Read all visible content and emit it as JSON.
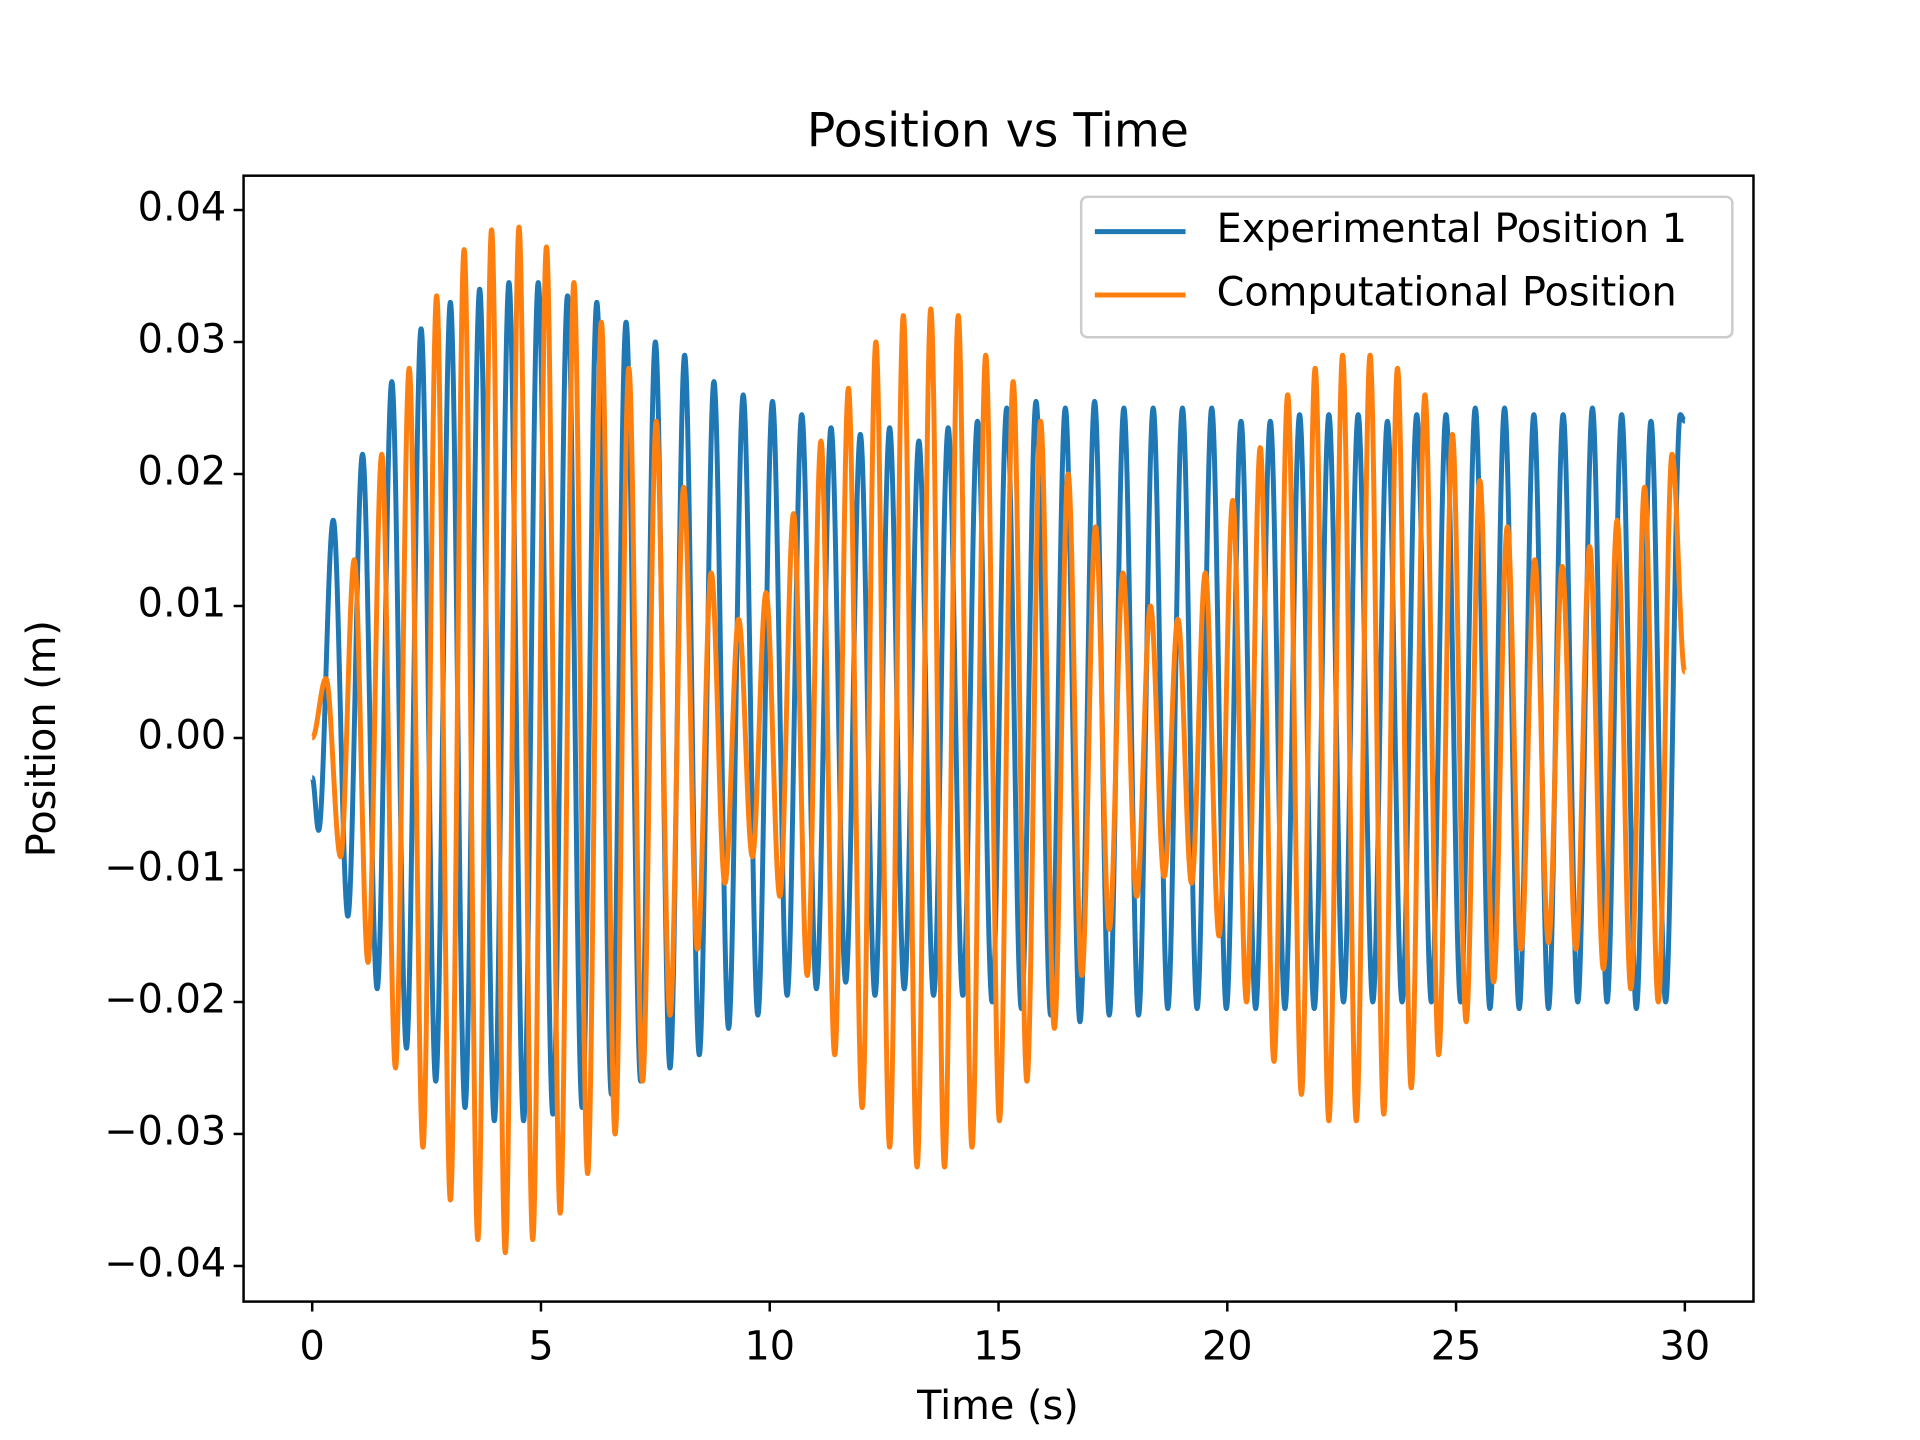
{
  "chart_data": {
    "type": "line",
    "title": "Position vs Time",
    "x_label": "Time (s)",
    "y_label": "Position (m)",
    "xlim": [
      -1.5,
      31.5
    ],
    "ylim": [
      -0.0427,
      0.0426
    ],
    "xticks": [
      0,
      5,
      10,
      15,
      20,
      25,
      30
    ],
    "yticks": [
      {
        "value": -0.04,
        "label": "−0.04"
      },
      {
        "value": -0.03,
        "label": "−0.03"
      },
      {
        "value": -0.02,
        "label": "−0.02"
      },
      {
        "value": -0.01,
        "label": "−0.01"
      },
      {
        "value": 0,
        "label": "0.00"
      },
      {
        "value": 0.01,
        "label": "0.01"
      },
      {
        "value": 0.02,
        "label": "0.02"
      },
      {
        "value": 0.03,
        "label": "0.03"
      },
      {
        "value": 0.04,
        "label": "0.04"
      }
    ],
    "grid": false,
    "legend": "upper right",
    "series": [
      {
        "name": "Experimental Position 1",
        "color": "#1f77b4",
        "x": [
          0,
          0.14,
          0.46,
          0.78,
          1.1,
          1.42,
          1.74,
          2.06,
          2.38,
          2.7,
          3.02,
          3.34,
          3.66,
          3.98,
          4.3,
          4.62,
          4.94,
          5.26,
          5.58,
          5.9,
          6.22,
          6.54,
          6.86,
          7.18,
          7.5,
          7.82,
          8.14,
          8.46,
          8.78,
          9.1,
          9.42,
          9.74,
          10.06,
          10.38,
          10.7,
          11.02,
          11.34,
          11.66,
          11.98,
          12.3,
          12.62,
          12.94,
          13.26,
          13.58,
          13.9,
          14.22,
          14.54,
          14.86,
          15.18,
          15.5,
          15.82,
          16.14,
          16.46,
          16.78,
          17.1,
          17.42,
          17.74,
          18.06,
          18.38,
          18.7,
          19.02,
          19.34,
          19.66,
          19.98,
          20.3,
          20.62,
          20.94,
          21.26,
          21.58,
          21.9,
          22.22,
          22.54,
          22.86,
          23.18,
          23.5,
          23.82,
          24.14,
          24.46,
          24.78,
          25.1,
          25.42,
          25.74,
          26.06,
          26.38,
          26.7,
          27.02,
          27.34,
          27.66,
          27.98,
          28.3,
          28.62,
          28.94,
          29.26,
          29.58,
          29.9,
          30
        ],
        "values": [
          -0.003,
          -0.007,
          0.0165,
          -0.0135,
          0.0215,
          -0.019,
          0.027,
          -0.0235,
          0.031,
          -0.026,
          0.033,
          -0.028,
          0.034,
          -0.029,
          0.0345,
          -0.029,
          0.0345,
          -0.0285,
          0.0335,
          -0.028,
          0.033,
          -0.027,
          0.0315,
          -0.026,
          0.03,
          -0.025,
          0.029,
          -0.024,
          0.027,
          -0.022,
          0.026,
          -0.021,
          0.0255,
          -0.0195,
          0.0245,
          -0.019,
          0.0235,
          -0.0185,
          0.023,
          -0.0195,
          0.0235,
          -0.019,
          0.0225,
          -0.0195,
          0.0235,
          -0.0195,
          0.024,
          -0.02,
          0.025,
          -0.0205,
          0.0255,
          -0.021,
          0.025,
          -0.0215,
          0.0255,
          -0.021,
          0.025,
          -0.021,
          0.025,
          -0.0205,
          0.025,
          -0.0205,
          0.025,
          -0.0205,
          0.024,
          -0.0205,
          0.024,
          -0.0205,
          0.0245,
          -0.0205,
          0.0245,
          -0.02,
          0.0245,
          -0.02,
          0.024,
          -0.02,
          0.0245,
          -0.02,
          0.0245,
          -0.02,
          0.025,
          -0.0205,
          0.025,
          -0.0205,
          0.0245,
          -0.0205,
          0.0245,
          -0.02,
          0.025,
          -0.02,
          0.0245,
          -0.0205,
          0.024,
          -0.02,
          0.0245,
          0.024
        ]
      },
      {
        "name": "Computational Position",
        "color": "#ff7f0e",
        "x": [
          0,
          0.3,
          0.62,
          0.92,
          1.22,
          1.52,
          1.82,
          2.12,
          2.42,
          2.72,
          3.02,
          3.32,
          3.62,
          3.92,
          4.22,
          4.52,
          4.82,
          5.12,
          5.42,
          5.72,
          6.02,
          6.32,
          6.62,
          6.92,
          7.22,
          7.52,
          7.82,
          8.12,
          8.42,
          8.72,
          9.02,
          9.32,
          9.62,
          9.92,
          10.22,
          10.52,
          10.82,
          11.12,
          11.42,
          11.72,
          12.02,
          12.32,
          12.62,
          12.92,
          13.22,
          13.52,
          13.82,
          14.12,
          14.42,
          14.72,
          15.02,
          15.32,
          15.62,
          15.92,
          16.22,
          16.52,
          16.82,
          17.12,
          17.42,
          17.72,
          18.02,
          18.32,
          18.62,
          18.92,
          19.22,
          19.52,
          19.82,
          20.12,
          20.42,
          20.72,
          21.02,
          21.32,
          21.62,
          21.92,
          22.22,
          22.52,
          22.82,
          23.12,
          23.42,
          23.72,
          24.02,
          24.32,
          24.62,
          24.92,
          25.22,
          25.52,
          25.82,
          26.12,
          26.42,
          26.72,
          27.02,
          27.32,
          27.62,
          27.92,
          28.22,
          28.52,
          28.82,
          29.12,
          29.42,
          29.72,
          30
        ],
        "values": [
          0,
          0.0045,
          -0.009,
          0.0135,
          -0.017,
          0.0215,
          -0.025,
          0.028,
          -0.031,
          0.0335,
          -0.035,
          0.037,
          -0.038,
          0.0385,
          -0.039,
          0.0387,
          -0.038,
          0.0372,
          -0.036,
          0.0345,
          -0.033,
          0.0315,
          -0.03,
          0.028,
          -0.026,
          0.024,
          -0.021,
          0.019,
          -0.016,
          0.0125,
          -0.011,
          0.009,
          -0.009,
          0.011,
          -0.012,
          0.017,
          -0.018,
          0.0225,
          -0.024,
          0.0265,
          -0.028,
          0.03,
          -0.031,
          0.032,
          -0.0325,
          0.0325,
          -0.0325,
          0.032,
          -0.031,
          0.029,
          -0.029,
          0.027,
          -0.026,
          0.024,
          -0.022,
          0.02,
          -0.018,
          0.016,
          -0.0145,
          0.0125,
          -0.012,
          0.01,
          -0.0105,
          0.009,
          -0.011,
          0.0125,
          -0.015,
          0.018,
          -0.02,
          0.022,
          -0.0245,
          0.026,
          -0.027,
          0.028,
          -0.029,
          0.029,
          -0.029,
          0.029,
          -0.0285,
          0.028,
          -0.0265,
          0.026,
          -0.024,
          0.023,
          -0.0215,
          0.0195,
          -0.0185,
          0.016,
          -0.016,
          0.0135,
          -0.0155,
          0.013,
          -0.016,
          0.0145,
          -0.0175,
          0.0165,
          -0.019,
          0.019,
          -0.02,
          0.0215,
          0.005
        ]
      }
    ]
  }
}
